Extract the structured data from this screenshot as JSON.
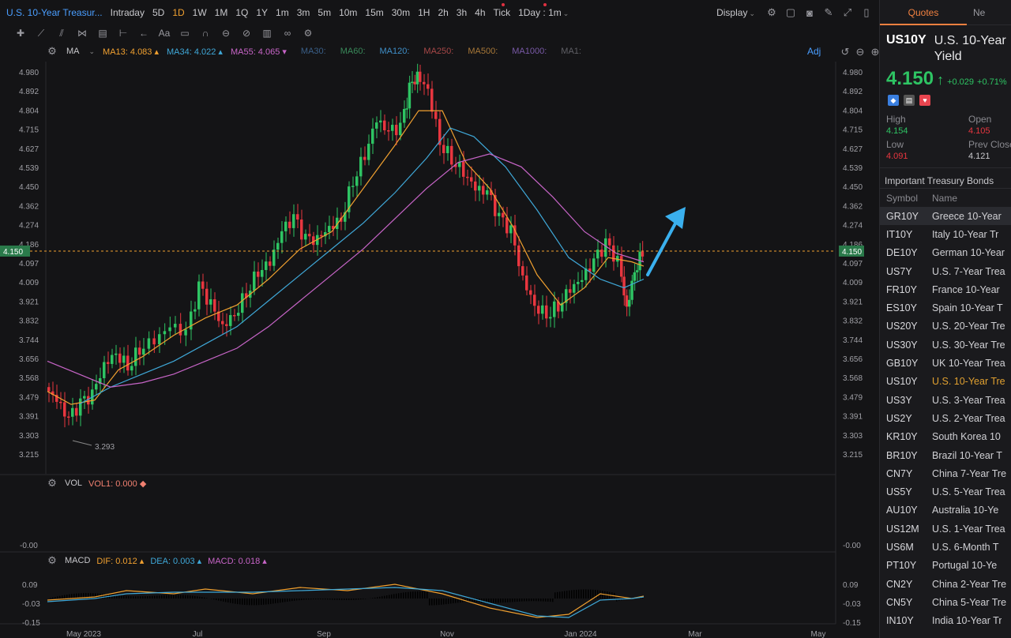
{
  "toolbar": {
    "title": "U.S. 10-Year Treasur...",
    "periods": [
      "Intraday",
      "5D",
      "1D",
      "1W",
      "1M",
      "1Q",
      "1Y",
      "1m",
      "3m",
      "5m",
      "10m",
      "15m",
      "30m",
      "1H",
      "2h",
      "3h",
      "4h",
      "Tick"
    ],
    "active_period": "1D",
    "interval": "1Day : 1m",
    "display": "Display"
  },
  "indicators": {
    "ma_label": "MA",
    "ma13": "MA13: 4.083",
    "ma34": "MA34: 4.022",
    "ma55": "MA55: 4.065",
    "others": [
      "MA30:",
      "MA60:",
      "MA120:",
      "MA250:",
      "MA500:",
      "MA1000:",
      "MA1:"
    ],
    "adj": "Adj",
    "vol_label": "VOL",
    "vol1": "VOL1: 0.000",
    "macd_label": "MACD",
    "dif": "DIF: 0.012",
    "dea": "DEA: 0.003",
    "macd": "MACD: 0.018"
  },
  "colors": {
    "up": "#2ec463",
    "down": "#e8363f",
    "ma13": "#f0a030",
    "ma34": "#3fa8d8",
    "ma55": "#c865c8",
    "accent": "#4a9eff"
  },
  "chart_data": {
    "type": "candlestick",
    "y_ticks": [
      "4.980",
      "4.892",
      "4.804",
      "4.715",
      "4.627",
      "4.539",
      "4.450",
      "4.362",
      "4.274",
      "4.186",
      "4.097",
      "4.009",
      "3.921",
      "3.832",
      "3.744",
      "3.656",
      "3.568",
      "3.479",
      "3.391",
      "3.303",
      "3.215"
    ],
    "x_ticks": [
      "May 2023",
      "Jul",
      "Sep",
      "Nov",
      "Jan 2024",
      "Mar",
      "May"
    ],
    "last_price": "4.150",
    "low_annotation": "3.293",
    "vol_axis": "-0.00",
    "macd_ticks": [
      "0.09",
      "-0.03",
      "-0.15"
    ]
  },
  "quote": {
    "tabs": [
      "Quotes",
      "Ne"
    ],
    "symbol": "US10Y",
    "name": "U.S. 10-Year Yield",
    "price": "4.150",
    "change": "+0.029",
    "change_pct": "+0.71%",
    "high_label": "High",
    "high": "4.154",
    "open_label": "Open",
    "open": "4.105",
    "low_label": "Low",
    "low": "4.091",
    "prev_label": "Prev Close",
    "prev": "4.121",
    "section": "Important Treasury Bonds",
    "col_symbol": "Symbol",
    "col_name": "Name",
    "bonds": [
      {
        "s": "GR10Y",
        "n": "Greece 10-Year"
      },
      {
        "s": "IT10Y",
        "n": "Italy 10-Year Tr"
      },
      {
        "s": "DE10Y",
        "n": "German 10-Year"
      },
      {
        "s": "US7Y",
        "n": "U.S. 7-Year Trea"
      },
      {
        "s": "FR10Y",
        "n": "France 10-Year"
      },
      {
        "s": "ES10Y",
        "n": "Spain 10-Year T"
      },
      {
        "s": "US20Y",
        "n": "U.S. 20-Year Tre"
      },
      {
        "s": "US30Y",
        "n": "U.S. 30-Year Tre"
      },
      {
        "s": "GB10Y",
        "n": "UK 10-Year Trea"
      },
      {
        "s": "US10Y",
        "n": "U.S. 10-Year Tre"
      },
      {
        "s": "US3Y",
        "n": "U.S. 3-Year Trea"
      },
      {
        "s": "US2Y",
        "n": "U.S. 2-Year Trea"
      },
      {
        "s": "KR10Y",
        "n": "South Korea 10"
      },
      {
        "s": "BR10Y",
        "n": "Brazil 10-Year T"
      },
      {
        "s": "CN7Y",
        "n": "China 7-Year Tre"
      },
      {
        "s": "US5Y",
        "n": "U.S. 5-Year Trea"
      },
      {
        "s": "AU10Y",
        "n": "Australia 10-Ye"
      },
      {
        "s": "US12M",
        "n": "U.S. 1-Year Trea"
      },
      {
        "s": "US6M",
        "n": "U.S. 6-Month T"
      },
      {
        "s": "PT10Y",
        "n": "Portugal 10-Ye"
      },
      {
        "s": "CN2Y",
        "n": "China 2-Year Tre"
      },
      {
        "s": "CN5Y",
        "n": "China 5-Year Tre"
      },
      {
        "s": "IN10Y",
        "n": "India 10-Year Tr"
      }
    ]
  }
}
